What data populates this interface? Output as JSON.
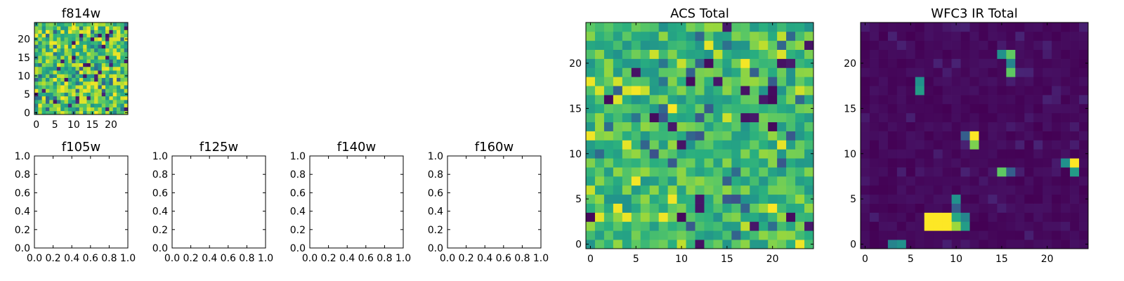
{
  "chart_data": [
    {
      "type": "heatmap",
      "title": "f814w",
      "xlim": [
        0,
        24
      ],
      "ylim": [
        0,
        24
      ],
      "grid": false,
      "xticks": [
        "0",
        "5",
        "10",
        "15",
        "20"
      ],
      "yticks": [
        "0",
        "5",
        "10",
        "15",
        "20"
      ],
      "note_values": "25x25 pixel grid, visual values approximated"
    },
    {
      "type": "heatmap",
      "title": "f105w",
      "xlim": [
        0,
        1
      ],
      "ylim": [
        0,
        1
      ],
      "grid": false,
      "xticks": [
        "0.0",
        "0.2",
        "0.4",
        "0.6",
        "0.8",
        "1.0"
      ],
      "yticks": [
        "0.0",
        "0.2",
        "0.4",
        "0.6",
        "0.8",
        "1.0"
      ]
    },
    {
      "type": "heatmap",
      "title": "f125w",
      "xlim": [
        0,
        1
      ],
      "ylim": [
        0,
        1
      ],
      "grid": false,
      "xticks": [
        "0.0",
        "0.2",
        "0.4",
        "0.6",
        "0.8",
        "1.0"
      ],
      "yticks": [
        "0.0",
        "0.2",
        "0.4",
        "0.6",
        "0.8",
        "1.0"
      ]
    },
    {
      "type": "heatmap",
      "title": "f140w",
      "xlim": [
        0,
        1
      ],
      "ylim": [
        0,
        1
      ],
      "grid": false,
      "xticks": [
        "0.0",
        "0.2",
        "0.4",
        "0.6",
        "0.8",
        "1.0"
      ],
      "yticks": [
        "0.0",
        "0.2",
        "0.4",
        "0.6",
        "0.8",
        "1.0"
      ]
    },
    {
      "type": "heatmap",
      "title": "f160w",
      "xlim": [
        0,
        1
      ],
      "ylim": [
        0,
        1
      ],
      "grid": false,
      "xticks": [
        "0.0",
        "0.2",
        "0.4",
        "0.6",
        "0.8",
        "1.0"
      ],
      "yticks": [
        "0.0",
        "0.2",
        "0.4",
        "0.6",
        "0.8",
        "1.0"
      ]
    },
    {
      "type": "heatmap",
      "title": "ACS Total",
      "xlim": [
        0,
        24
      ],
      "ylim": [
        0,
        24
      ],
      "grid": false,
      "xticks": [
        "0",
        "5",
        "10",
        "15",
        "20"
      ],
      "yticks": [
        "0",
        "5",
        "10",
        "15",
        "20"
      ]
    },
    {
      "type": "heatmap",
      "title": "WFC3 IR Total",
      "xlim": [
        0,
        24
      ],
      "ylim": [
        0,
        24
      ],
      "grid": false,
      "xticks": [
        "0",
        "5",
        "10",
        "15",
        "20"
      ],
      "yticks": [
        "0",
        "5",
        "10",
        "15",
        "20"
      ],
      "bright_sources": [
        {
          "x": 16,
          "y": 21,
          "v": 0.75
        },
        {
          "x": 15,
          "y": 21,
          "v": 0.5
        },
        {
          "x": 16,
          "y": 20,
          "v": 0.45
        },
        {
          "x": 16,
          "y": 19,
          "v": 0.75
        },
        {
          "x": 6,
          "y": 18,
          "v": 0.5
        },
        {
          "x": 6,
          "y": 17,
          "v": 0.55
        },
        {
          "x": 12,
          "y": 12,
          "v": 1.0
        },
        {
          "x": 12,
          "y": 11,
          "v": 0.8
        },
        {
          "x": 11,
          "y": 12,
          "v": 0.3
        },
        {
          "x": 23,
          "y": 9,
          "v": 1.0
        },
        {
          "x": 22,
          "y": 9,
          "v": 0.5
        },
        {
          "x": 23,
          "y": 8,
          "v": 0.55
        },
        {
          "x": 15,
          "y": 8,
          "v": 0.75
        },
        {
          "x": 16,
          "y": 8,
          "v": 0.3
        },
        {
          "x": 10,
          "y": 5,
          "v": 0.5
        },
        {
          "x": 7,
          "y": 2,
          "v": 1.0
        },
        {
          "x": 8,
          "y": 2,
          "v": 1.0
        },
        {
          "x": 9,
          "y": 2,
          "v": 1.0
        },
        {
          "x": 10,
          "y": 2,
          "v": 0.85
        },
        {
          "x": 11,
          "y": 2,
          "v": 0.55
        },
        {
          "x": 7,
          "y": 3,
          "v": 1.0
        },
        {
          "x": 8,
          "y": 3,
          "v": 1.0
        },
        {
          "x": 9,
          "y": 3,
          "v": 1.0
        },
        {
          "x": 10,
          "y": 3,
          "v": 0.6
        },
        {
          "x": 11,
          "y": 3,
          "v": 0.45
        },
        {
          "x": 10,
          "y": 4,
          "v": 0.3
        },
        {
          "x": 3,
          "y": 0,
          "v": 0.45
        },
        {
          "x": 4,
          "y": 0,
          "v": 0.5
        }
      ]
    }
  ],
  "colormap": "viridis"
}
